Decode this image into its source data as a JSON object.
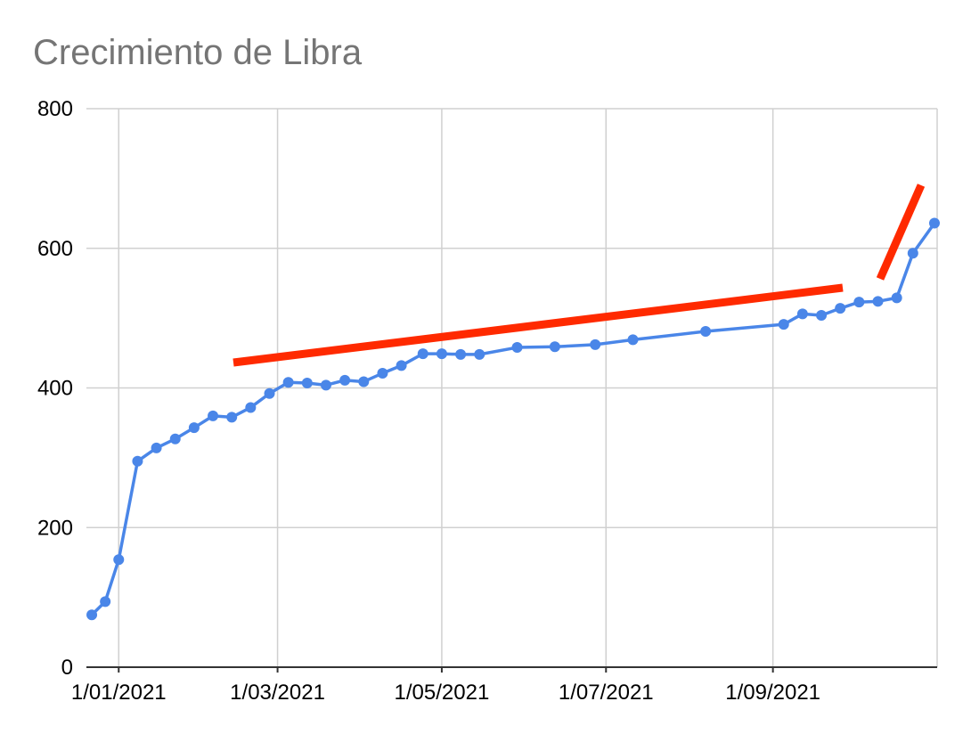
{
  "chart_data": {
    "type": "line",
    "title": "Crecimiento de Libra",
    "x": [
      "2020-12-22",
      "2020-12-27",
      "2021-01-01",
      "2021-01-08",
      "2021-01-15",
      "2021-01-22",
      "2021-01-29",
      "2021-02-05",
      "2021-02-12",
      "2021-02-19",
      "2021-02-26",
      "2021-03-05",
      "2021-03-12",
      "2021-03-19",
      "2021-03-26",
      "2021-04-02",
      "2021-04-09",
      "2021-04-16",
      "2021-04-24",
      "2021-05-01",
      "2021-05-08",
      "2021-05-15",
      "2021-05-29",
      "2021-06-12",
      "2021-06-27",
      "2021-07-11",
      "2021-08-07",
      "2021-09-05",
      "2021-09-12",
      "2021-09-19",
      "2021-09-26",
      "2021-10-03",
      "2021-10-10",
      "2021-10-17",
      "2021-10-23",
      "2021-10-31"
    ],
    "series": [
      {
        "color": "#4a86e8",
        "values": [
          75,
          94,
          154,
          295,
          314,
          327,
          343,
          360,
          358,
          372,
          392,
          408,
          407,
          404,
          411,
          409,
          421,
          432,
          449,
          449,
          448,
          448,
          458,
          459,
          462,
          469,
          481,
          491,
          506,
          504,
          514,
          523,
          524,
          529,
          593,
          636
        ]
      }
    ],
    "xlim": [
      "2020-12-20",
      "2021-11-01"
    ],
    "xticks": [
      {
        "value": "2021-01-01",
        "label": "1/01/2021"
      },
      {
        "value": "2021-03-01",
        "label": "1/03/2021"
      },
      {
        "value": "2021-05-01",
        "label": "1/05/2021"
      },
      {
        "value": "2021-07-01",
        "label": "1/07/2021"
      },
      {
        "value": "2021-09-01",
        "label": "1/09/2021"
      }
    ],
    "ylim": [
      0,
      800
    ],
    "yticks": [
      0,
      200,
      400,
      600,
      800
    ],
    "grid": true
  }
}
